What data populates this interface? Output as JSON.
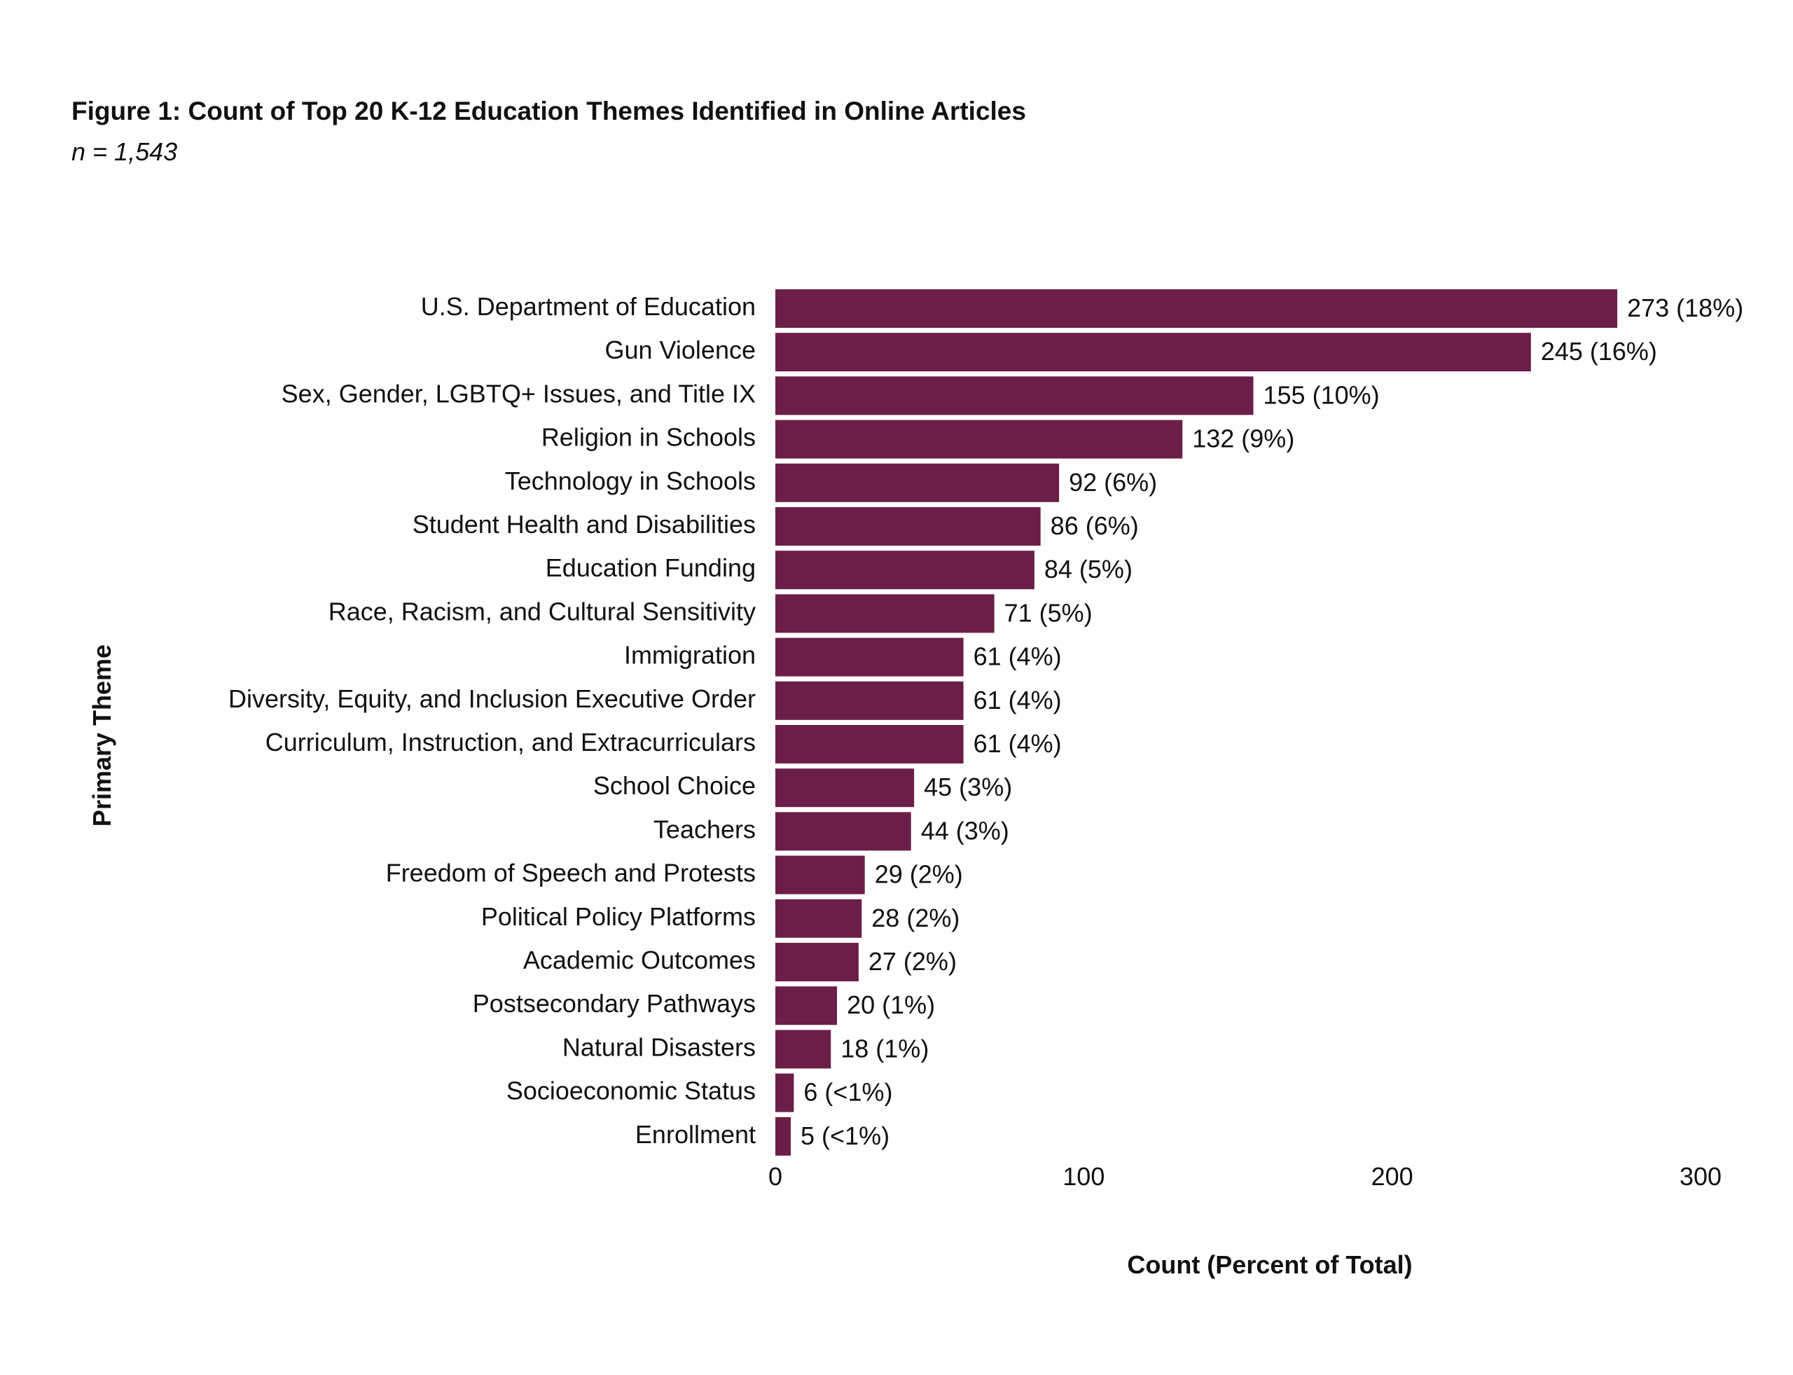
{
  "figure": {
    "title": "Figure 1: Count of Top 20 K-12 Education Themes Identified in Online Articles",
    "subtitle": "n = 1,543"
  },
  "chart_data": {
    "type": "bar",
    "orientation": "horizontal",
    "title": "Figure 1: Count of Top 20 K-12 Education Themes Identified in Online Articles",
    "subtitle": "n = 1,543",
    "xlabel": "Count (Percent of Total)",
    "ylabel": "Primary Theme",
    "xlim": [
      0,
      300
    ],
    "x_ticks": [
      "0",
      "100",
      "200",
      "300"
    ],
    "grid": false,
    "legend": "none",
    "bar_color": "#6b1f48",
    "categories": [
      "U.S. Department of Education",
      "Gun Violence",
      "Sex, Gender, LGBTQ+ Issues, and Title IX",
      "Religion in Schools",
      "Technology in Schools",
      "Student Health and Disabilities",
      "Education Funding",
      "Race, Racism, and Cultural Sensitivity",
      "Immigration",
      "Diversity, Equity, and Inclusion Executive Order",
      "Curriculum, Instruction, and Extracurriculars",
      "School Choice",
      "Teachers",
      "Freedom of Speech and Protests",
      "Political Policy Platforms",
      "Academic Outcomes",
      "Postsecondary Pathways",
      "Natural Disasters",
      "Socioeconomic Status",
      "Enrollment"
    ],
    "values": [
      273,
      245,
      155,
      132,
      92,
      86,
      84,
      71,
      61,
      61,
      61,
      45,
      44,
      29,
      28,
      27,
      20,
      18,
      6,
      5
    ],
    "data_labels": [
      "273 (18%)",
      "245 (16%)",
      "155 (10%)",
      "132 (9%)",
      "92 (6%)",
      "86 (6%)",
      "84 (5%)",
      "71 (5%)",
      "61 (4%)",
      "61 (4%)",
      "61 (4%)",
      "45 (3%)",
      "44 (3%)",
      "29 (2%)",
      "28 (2%)",
      "27 (2%)",
      "20 (1%)",
      "18 (1%)",
      "6 (<1%)",
      "5 (<1%)"
    ]
  }
}
